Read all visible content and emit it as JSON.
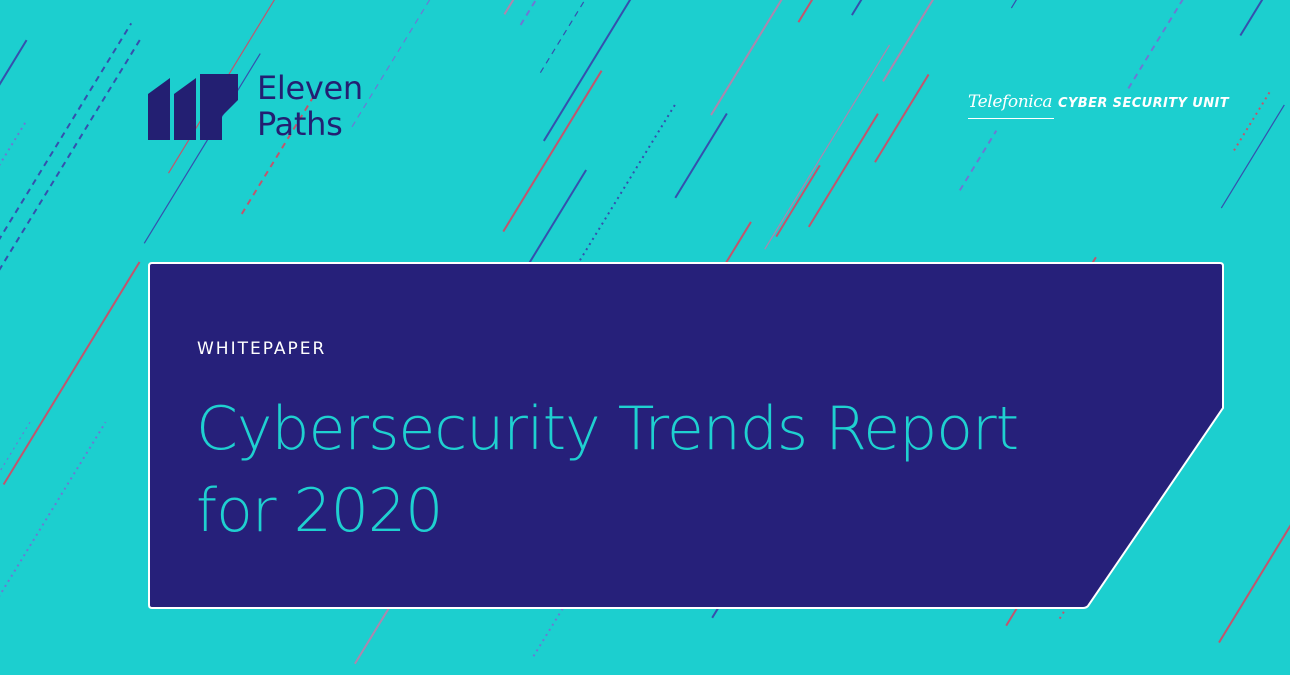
{
  "brand": {
    "eleven_paths_line1": "Eleven",
    "eleven_paths_line2": "Paths",
    "eleven_paths_mark_icon": "eleven-paths-logo-icon",
    "telefonica_wordmark": "Telefonica",
    "telefonica_unit": "CYBER SECURITY UNIT"
  },
  "card": {
    "eyebrow": "WHITEPAPER",
    "title_line1": "Cybersecurity Trends Report",
    "title_line2": "for 2020"
  },
  "colors": {
    "background": "#1ccfcf",
    "card": "#26207a",
    "brand_navy": "#231f72",
    "title": "#1fd0d0",
    "line_red": "#e0405c",
    "line_blue": "#3a3aa8",
    "line_purple": "#7a6ad6",
    "line_pink": "#c77aa8"
  }
}
